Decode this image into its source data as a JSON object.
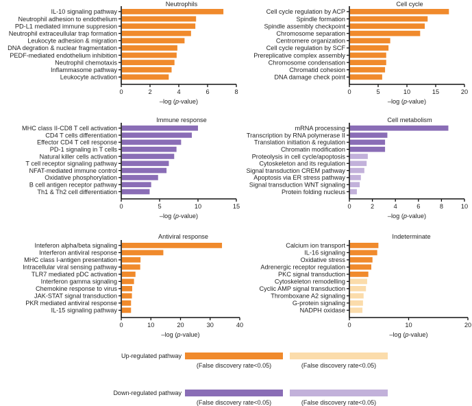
{
  "colors": {
    "up_sig": "#f08a2c",
    "up_nonsig": "#fbdcab",
    "down_sig": "#8a6db6",
    "down_nonsig": "#c2b1da",
    "axis": "#111111"
  },
  "chart_data": [
    {
      "type": "bar",
      "orientation": "horizontal",
      "title": "Neutrophils",
      "xlabel_prefix": "–log (",
      "xlabel_italic": "p",
      "xlabel_suffix": "-value)",
      "xlim": [
        0,
        8
      ],
      "xticks": [
        0,
        2,
        4,
        6,
        8
      ],
      "categories": [
        "IL-10 signaling pathway",
        "Neutrophil adhesion to endothelium",
        "PD-L1 mediated immune suppresion",
        "Neutrophil extraceullular trap formation",
        "Leukocyte adhesion & migration",
        "DNA degration & nuclear fragmentation",
        "PEDF-mediated endothelium inhibition",
        "Neutrophil chemotaxis",
        "Inflammasome pathway",
        "Leukocyte activation"
      ],
      "values": [
        7.1,
        5.2,
        5.15,
        4.85,
        4.4,
        3.9,
        3.85,
        3.7,
        3.5,
        3.3
      ],
      "status": [
        "up_sig",
        "up_sig",
        "up_sig",
        "up_sig",
        "up_sig",
        "up_sig",
        "up_sig",
        "up_sig",
        "up_sig",
        "up_sig"
      ]
    },
    {
      "type": "bar",
      "orientation": "horizontal",
      "title": "Cell cycle",
      "xlabel_prefix": "–log (",
      "xlabel_italic": "p",
      "xlabel_suffix": "-value)",
      "xlim": [
        0,
        20
      ],
      "xticks": [
        0,
        5,
        10,
        15,
        20
      ],
      "categories": [
        "Cell cycle regulation by ACP",
        "Spindle formation",
        "Spindle assembly checkpoint",
        "Chromosome separation",
        "Centromere organization",
        "Cell cycle regulation by SCF",
        "Prereplicative complex assembly",
        "Chromosome condensation",
        "Chromatid cohesion",
        "DNA damage check point"
      ],
      "values": [
        17.3,
        13.6,
        13.1,
        12.3,
        7.1,
        6.8,
        6.4,
        6.4,
        6.2,
        5.7
      ],
      "status": [
        "up_sig",
        "up_sig",
        "up_sig",
        "up_sig",
        "up_sig",
        "up_sig",
        "up_sig",
        "up_sig",
        "up_sig",
        "up_sig"
      ]
    },
    {
      "type": "bar",
      "orientation": "horizontal",
      "title": "Immune response",
      "xlabel_prefix": "–log (",
      "xlabel_italic": "p",
      "xlabel_suffix": "-value)",
      "xlim": [
        0,
        15
      ],
      "xticks": [
        0,
        5,
        10,
        15
      ],
      "categories": [
        "MHC class II-CD8 T cell activation",
        "CD4 T cells differentiation",
        "Effector CD4 T cell response",
        "PD-1 signaling in T cells",
        "Natural killer cells activation",
        "T cell receptor signaling pathway",
        "NFAT-mediated immune control",
        "Oxidative phosphorylation",
        "B cell antigen receptor pathway",
        "Th1 & Th2 cell differentiation"
      ],
      "values": [
        10.0,
        9.2,
        7.8,
        7.2,
        6.9,
        6.2,
        5.9,
        4.8,
        3.9,
        3.7
      ],
      "status": [
        "down_sig",
        "down_sig",
        "down_sig",
        "down_sig",
        "down_sig",
        "down_sig",
        "down_sig",
        "down_sig",
        "down_sig",
        "down_sig"
      ]
    },
    {
      "type": "bar",
      "orientation": "horizontal",
      "title": "Cell metabolism",
      "xlabel_prefix": "–log (",
      "xlabel_italic": "p",
      "xlabel_suffix": "-value)",
      "xlim": [
        0,
        10
      ],
      "xticks": [
        0,
        2,
        4,
        6,
        8,
        10
      ],
      "categories": [
        "mRNA processing",
        "Transcription by RNA polymerase II",
        "Translation initiation & regulation",
        "Chromatin modification",
        "Proteolysis in cell cycle/apoptosis",
        "Cytoskeleton and its regulation",
        "Signal transduction CREM pathway",
        "Apoptosis via ER stress pathway",
        "Signal transduction WNT signaling",
        "Protein folding nucleus"
      ],
      "values": [
        8.6,
        3.3,
        3.1,
        3.1,
        1.6,
        1.5,
        1.3,
        1.0,
        0.9,
        0.65
      ],
      "status": [
        "down_sig",
        "down_sig",
        "down_sig",
        "down_sig",
        "down_nonsig",
        "down_nonsig",
        "down_nonsig",
        "down_nonsig",
        "down_nonsig",
        "down_nonsig"
      ]
    },
    {
      "type": "bar",
      "orientation": "horizontal",
      "title": "Antiviral response",
      "xlabel_prefix": "–log (",
      "xlabel_italic": "p",
      "xlabel_suffix": "-value)",
      "xlim": [
        0,
        40
      ],
      "xticks": [
        0,
        10,
        20,
        30,
        40
      ],
      "categories": [
        "Inteferon alpha/beta signaling",
        "Interferon antiviral response",
        "MHC class I-antigen presentation",
        "Intracellular viral sensing pathway",
        "TLR7 mediated pDC activation",
        "Interferon gamma signaling",
        "Chemokine response to virus",
        "JAK-STAT signal transduction",
        "PKR mediated antiviral response",
        "IL-15 signaling pathway"
      ],
      "values": [
        34.0,
        14.2,
        6.5,
        6.4,
        4.8,
        4.3,
        3.7,
        3.6,
        3.3,
        3.3
      ],
      "status": [
        "up_sig",
        "up_sig",
        "up_sig",
        "up_sig",
        "up_sig",
        "up_sig",
        "up_sig",
        "up_sig",
        "up_sig",
        "up_sig"
      ]
    },
    {
      "type": "bar",
      "orientation": "horizontal",
      "title": "Indeterminate",
      "xlabel_prefix": "–log (",
      "xlabel_italic": "p",
      "xlabel_suffix": "-value)",
      "xlim": [
        0,
        20
      ],
      "xticks": [
        0,
        10,
        20
      ],
      "categories": [
        "Calcium ion transport",
        "IL-16 signaling",
        "Oxidative stress",
        "Adrenergic receptor regulation",
        "PKC signal transduction",
        "Cytoskeleton remodelling",
        "Cyclic AMP signal transduction",
        "Thromboxane A2 signaling",
        "G-protein signaling",
        "NADPH oxidase"
      ],
      "values": [
        4.9,
        4.7,
        3.9,
        3.7,
        3.2,
        3.0,
        2.8,
        2.4,
        2.3,
        2.2
      ],
      "status": [
        "up_sig",
        "up_sig",
        "up_sig",
        "up_sig",
        "up_sig",
        "up_nonsig",
        "up_nonsig",
        "up_nonsig",
        "up_nonsig",
        "up_nonsig"
      ]
    }
  ],
  "legend": {
    "rows": [
      {
        "label": "Up-regulated pathway",
        "swatches": [
          {
            "status": "up_sig",
            "caption": "(False discovery rate<0.05)"
          },
          {
            "status": "up_nonsig",
            "caption": "(False discovery rate<0.05)"
          }
        ]
      },
      {
        "label": "Down-regulated pathway",
        "swatches": [
          {
            "status": "down_sig",
            "caption": "(False discovery rate<0.05)"
          },
          {
            "status": "down_nonsig",
            "caption": "(False discovery rate<0.05)"
          }
        ]
      }
    ]
  }
}
